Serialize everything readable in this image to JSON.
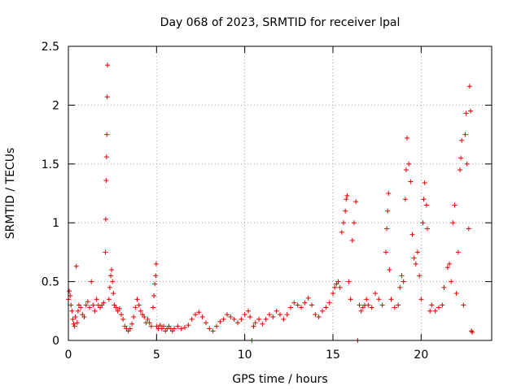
{
  "chart_data": {
    "type": "scatter",
    "title": "Day 068 of 2023, SRMTID for receiver lpal",
    "xlabel": "GPS time / hours",
    "ylabel": "SRMTID / TECUs",
    "xlim": [
      0,
      24
    ],
    "ylim": [
      0,
      2.5
    ],
    "x_ticks": [
      0,
      5,
      10,
      15,
      20
    ],
    "y_ticks": [
      0,
      0.5,
      1,
      1.5,
      2,
      2.5
    ],
    "x_tick_labels": [
      "0",
      "5",
      "10",
      "15",
      "20"
    ],
    "y_tick_labels": [
      "0",
      "0.5",
      "1",
      "1.5",
      "2",
      "2.5"
    ],
    "grid": true,
    "marker": "+",
    "color": "#e00000",
    "series": [
      {
        "name": "SRMTID",
        "points": [
          [
            0.0,
            0.35
          ],
          [
            0.05,
            0.42
          ],
          [
            0.1,
            0.38
          ],
          [
            0.15,
            0.3
          ],
          [
            0.2,
            0.25
          ],
          [
            0.25,
            0.18
          ],
          [
            0.3,
            0.14
          ],
          [
            0.35,
            0.12
          ],
          [
            0.4,
            0.2
          ],
          [
            0.45,
            0.63
          ],
          [
            0.5,
            0.15
          ],
          [
            0.55,
            0.25
          ],
          [
            0.6,
            0.3
          ],
          [
            0.7,
            0.28
          ],
          [
            0.8,
            0.22
          ],
          [
            0.9,
            0.2
          ],
          [
            1.0,
            0.3
          ],
          [
            1.1,
            0.33
          ],
          [
            1.2,
            0.28
          ],
          [
            1.3,
            0.5
          ],
          [
            1.4,
            0.3
          ],
          [
            1.5,
            0.25
          ],
          [
            1.6,
            0.35
          ],
          [
            1.7,
            0.3
          ],
          [
            1.8,
            0.28
          ],
          [
            1.9,
            0.3
          ],
          [
            2.0,
            0.32
          ],
          [
            2.1,
            0.75
          ],
          [
            2.12,
            1.03
          ],
          [
            2.14,
            1.36
          ],
          [
            2.16,
            1.56
          ],
          [
            2.18,
            1.75
          ],
          [
            2.2,
            2.07
          ],
          [
            2.22,
            2.34
          ],
          [
            2.3,
            0.35
          ],
          [
            2.35,
            0.45
          ],
          [
            2.4,
            0.55
          ],
          [
            2.45,
            0.6
          ],
          [
            2.5,
            0.5
          ],
          [
            2.55,
            0.4
          ],
          [
            2.6,
            0.3
          ],
          [
            2.7,
            0.28
          ],
          [
            2.8,
            0.25
          ],
          [
            2.9,
            0.27
          ],
          [
            3.0,
            0.22
          ],
          [
            3.1,
            0.18
          ],
          [
            3.2,
            0.12
          ],
          [
            3.3,
            0.1
          ],
          [
            3.4,
            0.08
          ],
          [
            3.5,
            0.1
          ],
          [
            3.6,
            0.14
          ],
          [
            3.7,
            0.2
          ],
          [
            3.8,
            0.28
          ],
          [
            3.9,
            0.35
          ],
          [
            4.0,
            0.3
          ],
          [
            4.1,
            0.25
          ],
          [
            4.2,
            0.22
          ],
          [
            4.3,
            0.2
          ],
          [
            4.4,
            0.15
          ],
          [
            4.5,
            0.18
          ],
          [
            4.6,
            0.15
          ],
          [
            4.7,
            0.12
          ],
          [
            4.8,
            0.28
          ],
          [
            4.85,
            0.38
          ],
          [
            4.9,
            0.48
          ],
          [
            4.95,
            0.55
          ],
          [
            4.98,
            0.65
          ],
          [
            5.0,
            0.12
          ],
          [
            5.1,
            0.1
          ],
          [
            5.2,
            0.13
          ],
          [
            5.3,
            0.1
          ],
          [
            5.4,
            0.12
          ],
          [
            5.5,
            0.08
          ],
          [
            5.6,
            0.1
          ],
          [
            5.7,
            0.12
          ],
          [
            5.8,
            0.1
          ],
          [
            5.9,
            0.08
          ],
          [
            6.0,
            0.1
          ],
          [
            6.2,
            0.12
          ],
          [
            6.4,
            0.1
          ],
          [
            6.6,
            0.11
          ],
          [
            6.8,
            0.13
          ],
          [
            7.0,
            0.18
          ],
          [
            7.2,
            0.22
          ],
          [
            7.4,
            0.24
          ],
          [
            7.6,
            0.2
          ],
          [
            7.8,
            0.15
          ],
          [
            8.0,
            0.1
          ],
          [
            8.2,
            0.08
          ],
          [
            8.4,
            0.12
          ],
          [
            8.6,
            0.16
          ],
          [
            8.8,
            0.18
          ],
          [
            9.0,
            0.22
          ],
          [
            9.2,
            0.2
          ],
          [
            9.4,
            0.18
          ],
          [
            9.6,
            0.15
          ],
          [
            9.8,
            0.18
          ],
          [
            10.0,
            0.22
          ],
          [
            10.2,
            0.25
          ],
          [
            10.3,
            0.2
          ],
          [
            10.4,
            0.0
          ],
          [
            10.5,
            0.12
          ],
          [
            10.6,
            0.15
          ],
          [
            10.8,
            0.18
          ],
          [
            11.0,
            0.14
          ],
          [
            11.2,
            0.18
          ],
          [
            11.4,
            0.22
          ],
          [
            11.6,
            0.2
          ],
          [
            11.8,
            0.25
          ],
          [
            12.0,
            0.22
          ],
          [
            12.2,
            0.18
          ],
          [
            12.4,
            0.22
          ],
          [
            12.6,
            0.28
          ],
          [
            12.8,
            0.32
          ],
          [
            13.0,
            0.3
          ],
          [
            13.2,
            0.28
          ],
          [
            13.4,
            0.32
          ],
          [
            13.6,
            0.36
          ],
          [
            13.8,
            0.3
          ],
          [
            14.0,
            0.22
          ],
          [
            14.2,
            0.2
          ],
          [
            14.4,
            0.25
          ],
          [
            14.6,
            0.28
          ],
          [
            14.8,
            0.32
          ],
          [
            15.0,
            0.4
          ],
          [
            15.1,
            0.45
          ],
          [
            15.2,
            0.48
          ],
          [
            15.3,
            0.5
          ],
          [
            15.4,
            0.45
          ],
          [
            15.5,
            0.92
          ],
          [
            15.6,
            1.0
          ],
          [
            15.7,
            1.1
          ],
          [
            15.75,
            1.2
          ],
          [
            15.8,
            1.23
          ],
          [
            15.9,
            0.5
          ],
          [
            16.0,
            0.35
          ],
          [
            16.1,
            0.85
          ],
          [
            16.2,
            1.0
          ],
          [
            16.3,
            1.18
          ],
          [
            16.4,
            0.0
          ],
          [
            16.5,
            0.3
          ],
          [
            16.6,
            0.25
          ],
          [
            16.7,
            0.28
          ],
          [
            16.8,
            0.3
          ],
          [
            16.9,
            0.35
          ],
          [
            17.0,
            0.3
          ],
          [
            17.2,
            0.28
          ],
          [
            17.4,
            0.4
          ],
          [
            17.6,
            0.35
          ],
          [
            17.8,
            0.3
          ],
          [
            18.0,
            0.75
          ],
          [
            18.05,
            0.95
          ],
          [
            18.1,
            1.1
          ],
          [
            18.15,
            1.25
          ],
          [
            18.2,
            0.6
          ],
          [
            18.3,
            0.35
          ],
          [
            18.5,
            0.28
          ],
          [
            18.7,
            0.3
          ],
          [
            18.8,
            0.45
          ],
          [
            18.9,
            0.55
          ],
          [
            19.0,
            0.5
          ],
          [
            19.1,
            1.2
          ],
          [
            19.15,
            1.45
          ],
          [
            19.2,
            1.72
          ],
          [
            19.3,
            1.5
          ],
          [
            19.4,
            1.35
          ],
          [
            19.5,
            0.9
          ],
          [
            19.6,
            0.7
          ],
          [
            19.7,
            0.65
          ],
          [
            19.8,
            0.75
          ],
          [
            19.9,
            0.55
          ],
          [
            20.0,
            0.35
          ],
          [
            20.1,
            1.0
          ],
          [
            20.15,
            1.2
          ],
          [
            20.2,
            1.34
          ],
          [
            20.3,
            1.15
          ],
          [
            20.35,
            0.95
          ],
          [
            20.5,
            0.25
          ],
          [
            20.6,
            0.3
          ],
          [
            20.8,
            0.25
          ],
          [
            21.0,
            0.28
          ],
          [
            21.2,
            0.3
          ],
          [
            21.3,
            0.45
          ],
          [
            21.5,
            0.62
          ],
          [
            21.6,
            0.65
          ],
          [
            21.7,
            0.5
          ],
          [
            21.8,
            1.0
          ],
          [
            21.9,
            1.15
          ],
          [
            22.0,
            0.4
          ],
          [
            22.1,
            0.75
          ],
          [
            22.2,
            1.45
          ],
          [
            22.25,
            1.55
          ],
          [
            22.3,
            1.7
          ],
          [
            22.4,
            0.3
          ],
          [
            22.5,
            1.75
          ],
          [
            22.55,
            1.93
          ],
          [
            22.6,
            1.5
          ],
          [
            22.7,
            0.95
          ],
          [
            22.75,
            2.16
          ],
          [
            22.8,
            1.95
          ],
          [
            22.85,
            0.08
          ],
          [
            22.9,
            0.07
          ]
        ]
      }
    ]
  }
}
